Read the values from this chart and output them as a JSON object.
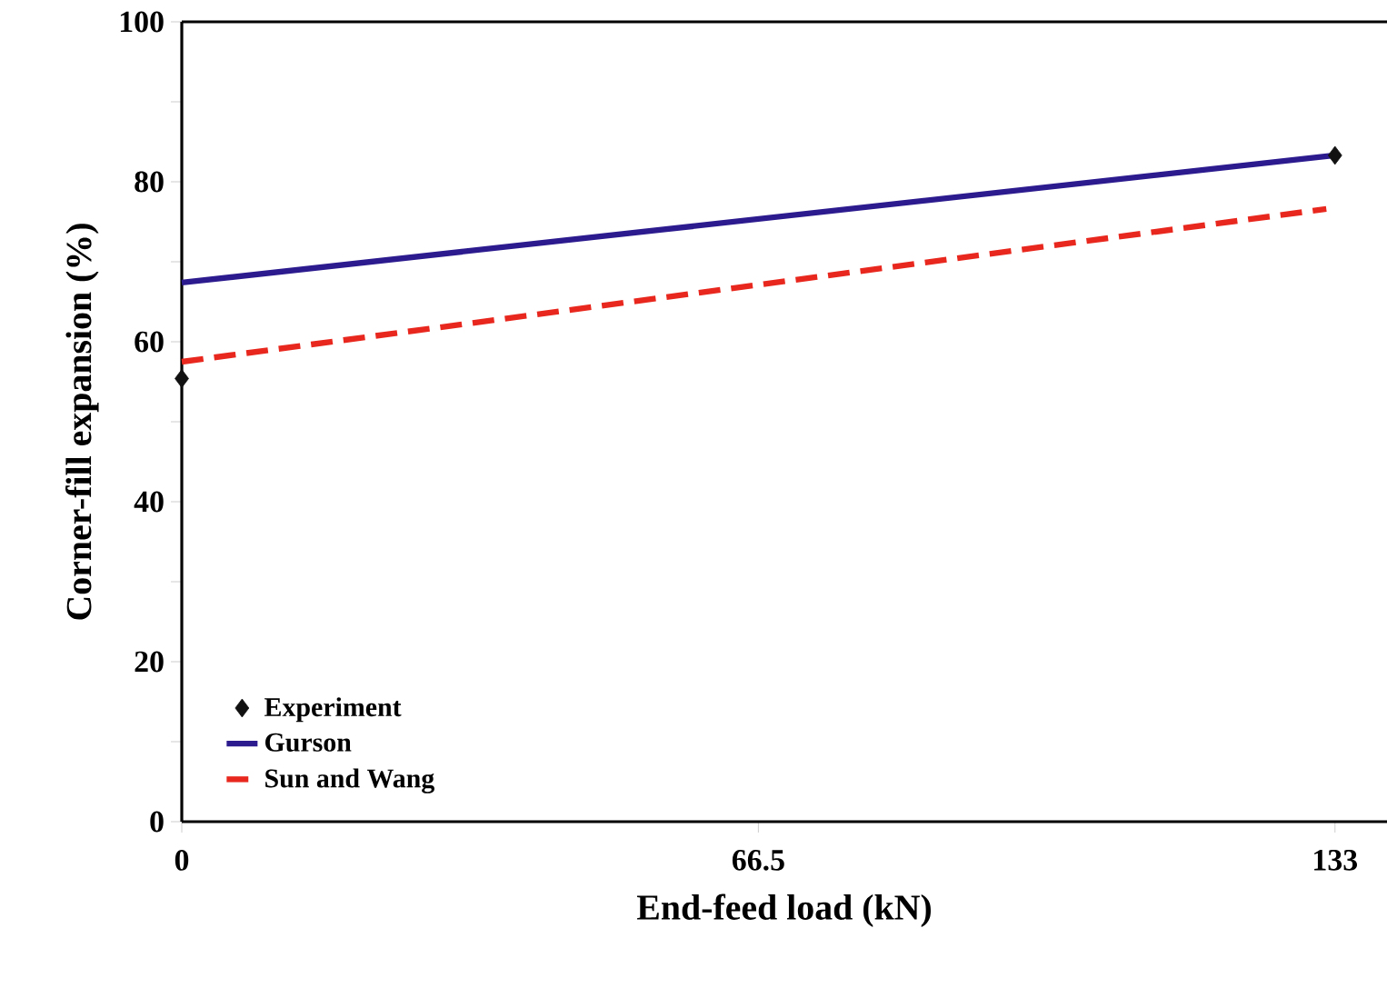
{
  "chart_data": {
    "type": "line",
    "xlabel": "End-feed load (kN)",
    "ylabel": "Corner-fill expansion (%)",
    "xlim": [
      0,
      139
    ],
    "xticks": [
      0,
      66.5,
      133
    ],
    "ylim": [
      0,
      100
    ],
    "yticks": [
      0,
      {
        "value": 10,
        "label": null
      },
      20,
      {
        "value": 30,
        "label": null
      },
      40,
      {
        "value": 50,
        "label": null
      },
      60,
      {
        "value": 70,
        "label": null
      },
      80,
      {
        "value": 90,
        "label": null
      },
      100
    ],
    "legend": "bottom left",
    "grid": false,
    "series": [
      {
        "name": "Experiment",
        "type": "scatter",
        "marker": "diamond",
        "color": "#111111",
        "x": [
          0,
          133
        ],
        "values": [
          55.4,
          83.3
        ]
      },
      {
        "name": "Gurson",
        "line_style": "solid",
        "color": "#2b1b8f",
        "x": [
          0,
          133
        ],
        "values": [
          67.4,
          83.3
        ]
      },
      {
        "name": "Sun and Wang",
        "line_style": "dashed",
        "color": "#e8281e",
        "x": [
          0,
          132
        ],
        "values": [
          57.5,
          76.6
        ]
      }
    ]
  }
}
